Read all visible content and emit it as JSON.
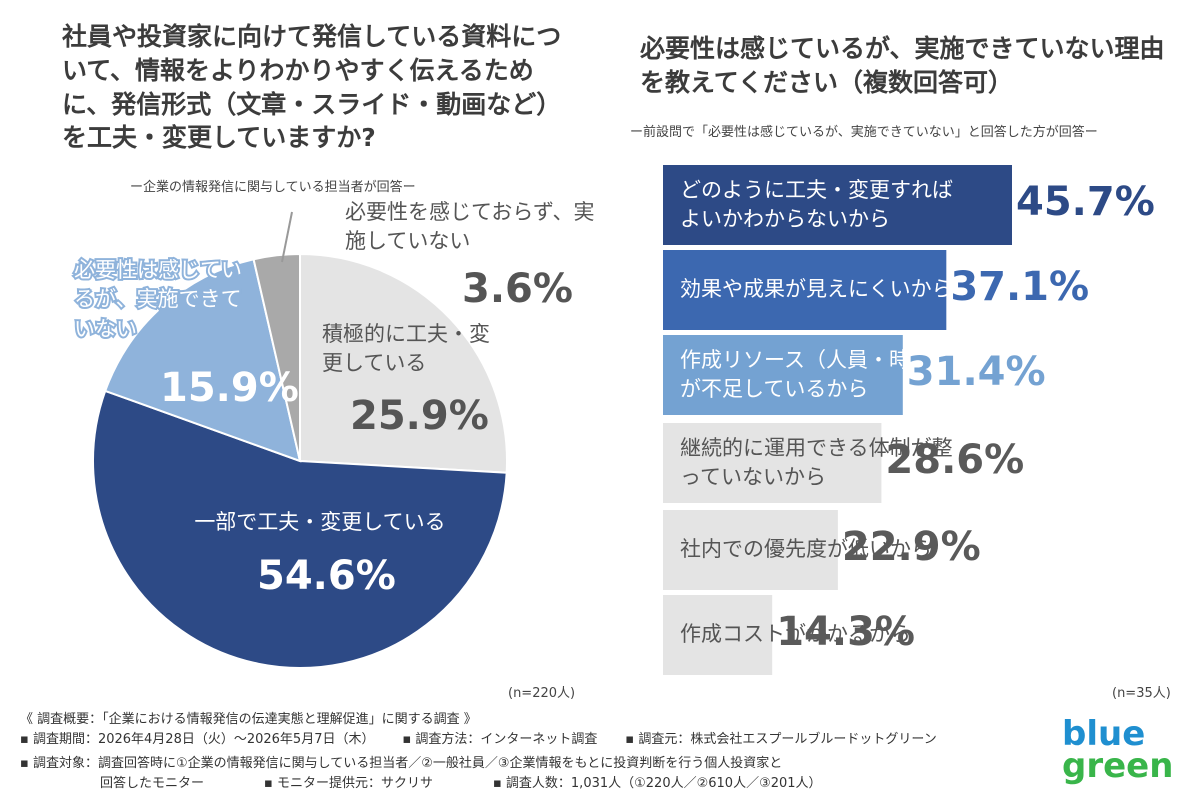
{
  "chart_data": [
    {
      "type": "pie",
      "title": "社員や投資家に向けて発信している資料について、情報をよりわかりやすく伝えるために、発信形式（文章・スライド・動画など）を工夫・変更していますか?",
      "subtitle": "ー企業の情報発信に関与している担当者が回答ー",
      "note": "(n=220人)",
      "categories": [
        "積極的に工夫・変更している",
        "一部で工夫・変更している",
        "必要性は感じているが、実施できていない",
        "必要性を感じておらず、実施していない"
      ],
      "values": [
        25.9,
        54.6,
        15.9,
        3.6
      ],
      "value_labels": [
        "25.9%",
        "54.6%",
        "15.9%",
        "3.6%"
      ],
      "colors": [
        "#e4e4e4",
        "#2d4a86",
        "#8fb3db",
        "#a9a9a9"
      ]
    },
    {
      "type": "bar",
      "title": "必要性は感じているが、実施できていない理由を教えてください（複数回答可）",
      "subtitle": "ー前設問で「必要性は感じているが、実施できていない」と回答した方が回答ー",
      "note": "(n=35人)",
      "categories": [
        "どのように工夫・変更すればよいかわからないから",
        "効果や成果が見えにくいから",
        "作成リソース（人員・時間）が不足しているから",
        "継続的に運用できる体制が整っていないから",
        "社内での優先度が低いから",
        "作成コストがかかるから"
      ],
      "values": [
        45.7,
        37.1,
        31.4,
        28.6,
        22.9,
        14.3
      ],
      "value_labels": [
        "45.7%",
        "37.1%",
        "31.4%",
        "28.6%",
        "22.9%",
        "14.3%"
      ],
      "colors": [
        "#2d4a86",
        "#3c68b0",
        "#74a2d2",
        "#e4e4e4",
        "#e4e4e4",
        "#e4e4e4"
      ],
      "label_colors": [
        "#2d4a86",
        "#3c68b0",
        "#74a2d2",
        "#5a5a5a",
        "#5a5a5a",
        "#5a5a5a"
      ]
    }
  ],
  "footer": [
    [
      "《 調査概要：「企業における情報発信の伝達実態と理解促進」に関する調査 》"
    ],
    [
      "▪ 調査期間：2026年4月28日（火）～2026年5月7日（木）",
      "▪ 調査方法：インターネット調査",
      "▪ 調査元：株式会社エスプールブルードットグリーン"
    ],
    [
      "▪ 調査対象：調査回答時に①企業の情報発信に関与している担当者／②一般社員／③企業情報をもとに投資判断を行う個人投資家と"
    ],
    [
      "回答したモニター",
      "▪ モニター提供元：サクリサ",
      "▪ 調査人数：1,031人（①220人／②610人／③201人）"
    ]
  ],
  "logo": [
    "blue",
    "green"
  ]
}
